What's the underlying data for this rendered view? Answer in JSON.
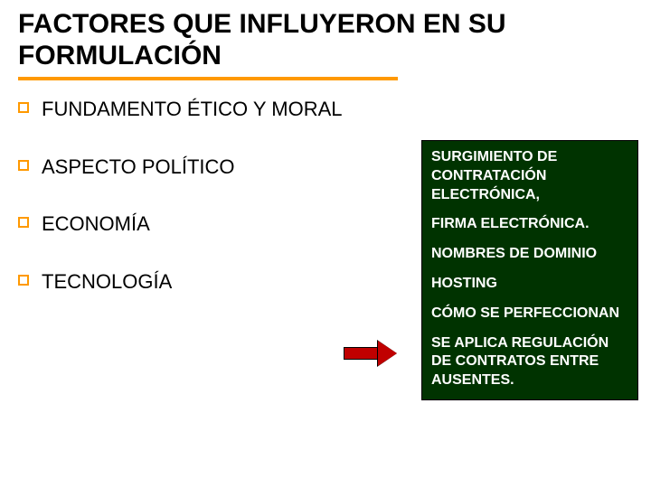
{
  "title": {
    "text": "FACTORES QUE INFLUYERON EN SU FORMULACIÓN",
    "fontsize": 30,
    "color": "#000000",
    "underline_color": "#ff9900"
  },
  "bullets": {
    "items": [
      {
        "text": "FUNDAMENTO ÉTICO Y MORAL"
      },
      {
        "text": "ASPECTO POLÍTICO"
      },
      {
        "text": "ECONOMÍA"
      },
      {
        "text": "TECNOLOGÍA"
      }
    ],
    "fontsize": 22,
    "marker_color": "#ff9900",
    "text_color": "#000000"
  },
  "arrow": {
    "fill_color": "#c00000",
    "border_color": "#000000"
  },
  "sidebox": {
    "background_color": "#003300",
    "text_color": "#ffffff",
    "fontsize": 16,
    "items": [
      "SURGIMIENTO DE CONTRATACIÓN ELECTRÓNICA,",
      "FIRMA ELECTRÓNICA.",
      "NOMBRES DE DOMINIO",
      "HOSTING",
      "CÓMO SE PERFECCIONAN",
      "SE APLICA REGULACIÓN DE CONTRATOS ENTRE AUSENTES."
    ]
  },
  "background_color": "#ffffff"
}
